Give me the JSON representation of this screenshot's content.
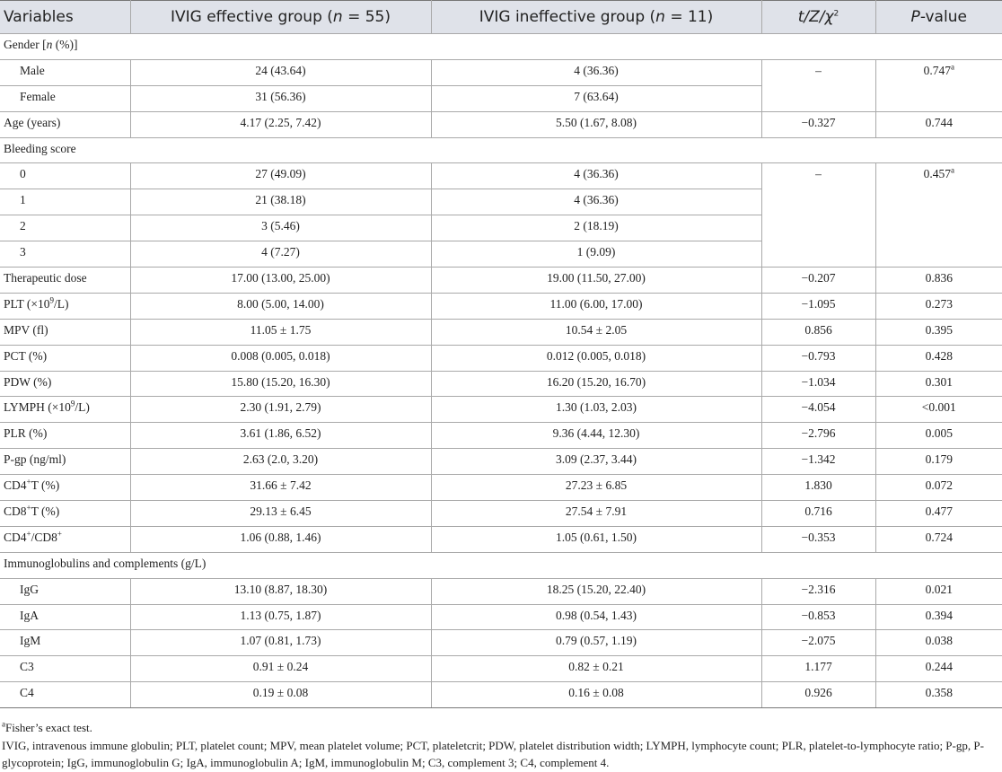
{
  "table": {
    "header": [
      "Variables",
      [
        "IVIG effective group (",
        {
          "i": "n"
        },
        " = 55)"
      ],
      [
        "IVIG ineffective group (",
        {
          "i": "n"
        },
        " = 11)"
      ],
      [
        {
          "i": "t/Z/χ"
        },
        {
          "sup": "2"
        }
      ],
      [
        {
          "i": "P"
        },
        "-value"
      ]
    ],
    "body": [
      {
        "label": [
          "Gender [",
          {
            "i": "n"
          },
          " (%)]"
        ],
        "rows": [
          [
            "Male",
            "24 (43.64)",
            "4 (36.36)",
            "–",
            [
              "0.747",
              {
                "sup": "a"
              }
            ]
          ],
          [
            "Female",
            "31 (56.36)",
            "7 (63.64)"
          ]
        ]
      },
      [
        "Age (years)",
        "4.17 (2.25, 7.42)",
        "5.50 (1.67, 8.08)",
        "−0.327",
        "0.744"
      ],
      {
        "label": "Bleeding score",
        "rows": [
          [
            "0",
            "27 (49.09)",
            "4 (36.36)",
            "–",
            [
              "0.457",
              {
                "sup": "a"
              }
            ]
          ],
          [
            "1",
            "21 (38.18)",
            "4 (36.36)"
          ],
          [
            "2",
            "3 (5.46)",
            "2 (18.19)"
          ],
          [
            "3",
            "4 (7.27)",
            "1 (9.09)"
          ]
        ]
      },
      [
        "Therapeutic dose",
        "17.00 (13.00, 25.00)",
        "19.00 (11.50, 27.00)",
        "−0.207",
        "0.836"
      ],
      [
        [
          "PLT (×10",
          {
            "sup": "9"
          },
          "/L)"
        ],
        "8.00 (5.00, 14.00)",
        "11.00 (6.00, 17.00)",
        "−1.095",
        "0.273"
      ],
      [
        "MPV (fl)",
        "11.05 ± 1.75",
        "10.54 ± 2.05",
        "0.856",
        "0.395"
      ],
      [
        "PCT (%)",
        "0.008 (0.005, 0.018)",
        "0.012 (0.005, 0.018)",
        "−0.793",
        "0.428"
      ],
      [
        "PDW (%)",
        "15.80 (15.20, 16.30)",
        "16.20 (15.20, 16.70)",
        "−1.034",
        "0.301"
      ],
      [
        [
          "LYMPH (×10",
          {
            "sup": "9"
          },
          "/L)"
        ],
        "2.30 (1.91, 2.79)",
        "1.30 (1.03, 2.03)",
        "−4.054",
        "<0.001"
      ],
      [
        "PLR (%)",
        "3.61 (1.86, 6.52)",
        "9.36 (4.44, 12.30)",
        "−2.796",
        "0.005"
      ],
      [
        "P-gp (ng/ml)",
        "2.63 (2.0, 3.20)",
        "3.09 (2.37, 3.44)",
        "−1.342",
        "0.179"
      ],
      [
        [
          "CD4",
          {
            "sup": "+"
          },
          "T (%)"
        ],
        "31.66 ± 7.42",
        "27.23 ± 6.85",
        "1.830",
        "0.072"
      ],
      [
        [
          "CD8",
          {
            "sup": "+"
          },
          "T (%)"
        ],
        "29.13 ± 6.45",
        "27.54 ± 7.91",
        "0.716",
        "0.477"
      ],
      [
        [
          "CD4",
          {
            "sup": "+"
          },
          "/CD8",
          {
            "sup": "+"
          }
        ],
        "1.06 (0.88, 1.46)",
        "1.05 (0.61, 1.50)",
        "−0.353",
        "0.724"
      ],
      {
        "label": "Immunoglobulins and complements (g/L)",
        "rows": [
          [
            "IgG",
            "13.10 (8.87, 18.30)",
            "18.25 (15.20, 22.40)",
            "−2.316",
            "0.021"
          ],
          [
            "IgA",
            "1.13 (0.75, 1.87)",
            "0.98 (0.54, 1.43)",
            "−0.853",
            "0.394"
          ],
          [
            "IgM",
            "1.07 (0.81, 1.73)",
            "0.79 (0.57, 1.19)",
            "−2.075",
            "0.038"
          ],
          [
            "C3",
            "0.91 ± 0.24",
            "0.82 ± 0.21",
            "1.177",
            "0.244"
          ],
          [
            "C4",
            "0.19 ± 0.08",
            "0.16 ± 0.08",
            "0.926",
            "0.358"
          ]
        ]
      }
    ],
    "footnotes": [
      [
        {
          "sup": "a"
        },
        "Fisher’s exact test."
      ],
      "IVIG, intravenous immune globulin; PLT, platelet count; MPV, mean platelet volume; PCT, plateletcrit; PDW, platelet distribution width; LYMPH, lymphocyte count; PLR, platelet-to-lymphocyte ratio; P-gp, P-glycoprotein; IgG, immunoglobulin G; IgA, immunoglobulin A; IgM, immunoglobulin M; C3, complement 3; C4, complement 4."
    ]
  }
}
